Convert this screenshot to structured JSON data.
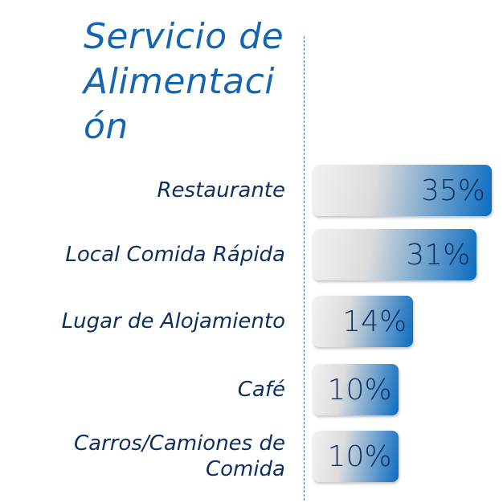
{
  "chart_data": {
    "type": "bar",
    "orientation": "horizontal",
    "title": "Servicio de Alimentación",
    "categories": [
      "Restaurante",
      "Local Comida Rápida",
      "Lugar de Alojamiento",
      "Café",
      "Carros/Camiones de Comida"
    ],
    "values": [
      35,
      31,
      14,
      10,
      10
    ],
    "value_labels": [
      "35%",
      "31%",
      "14%",
      "10%",
      "10%"
    ],
    "color": "#0a6cc0"
  }
}
